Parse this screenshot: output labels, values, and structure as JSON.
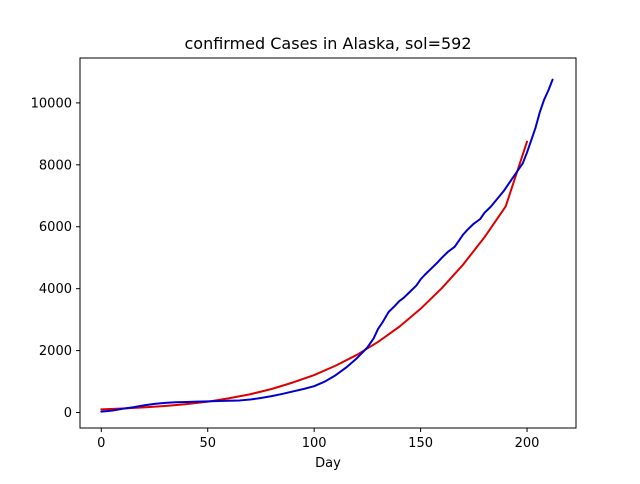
{
  "chart_data": {
    "type": "line",
    "title": "confirmed Cases in Alaska, sol=592",
    "xlabel": "Day",
    "ylabel": "",
    "xlim": [
      -10,
      223
    ],
    "ylim": [
      -500,
      11450
    ],
    "xticks": [
      0,
      50,
      100,
      150,
      200
    ],
    "yticks": [
      0,
      2000,
      4000,
      6000,
      8000,
      10000
    ],
    "grid": false,
    "series": [
      {
        "color": "#dd0000",
        "x": [
          0,
          10,
          20,
          30,
          40,
          50,
          60,
          70,
          80,
          90,
          100,
          110,
          120,
          130,
          140,
          150,
          160,
          170,
          180,
          190,
          200
        ],
        "y": [
          100,
          130,
          165,
          210,
          270,
          350,
          460,
          590,
          760,
          970,
          1210,
          1510,
          1860,
          2280,
          2770,
          3350,
          4020,
          4780,
          5660,
          6660,
          8750
        ]
      },
      {
        "color": "#0000cc",
        "x": [
          0,
          5,
          10,
          15,
          20,
          25,
          30,
          35,
          40,
          45,
          50,
          55,
          60,
          65,
          70,
          75,
          80,
          85,
          90,
          95,
          100,
          105,
          110,
          115,
          120,
          125,
          128,
          130,
          132,
          135,
          138,
          140,
          142,
          145,
          148,
          150,
          152,
          155,
          158,
          160,
          163,
          166,
          168,
          170,
          172,
          175,
          178,
          180,
          183,
          186,
          189,
          192,
          195,
          198,
          200,
          202,
          204,
          206,
          208,
          210,
          212
        ],
        "y": [
          30,
          60,
          120,
          170,
          230,
          280,
          310,
          330,
          340,
          350,
          360,
          370,
          380,
          390,
          420,
          470,
          530,
          600,
          680,
          760,
          850,
          1000,
          1200,
          1450,
          1750,
          2100,
          2400,
          2700,
          2900,
          3250,
          3450,
          3600,
          3700,
          3900,
          4100,
          4300,
          4450,
          4650,
          4850,
          5000,
          5200,
          5350,
          5550,
          5750,
          5900,
          6100,
          6250,
          6450,
          6650,
          6900,
          7150,
          7450,
          7750,
          8050,
          8400,
          8800,
          9200,
          9700,
          10100,
          10400,
          10750
        ]
      }
    ]
  }
}
